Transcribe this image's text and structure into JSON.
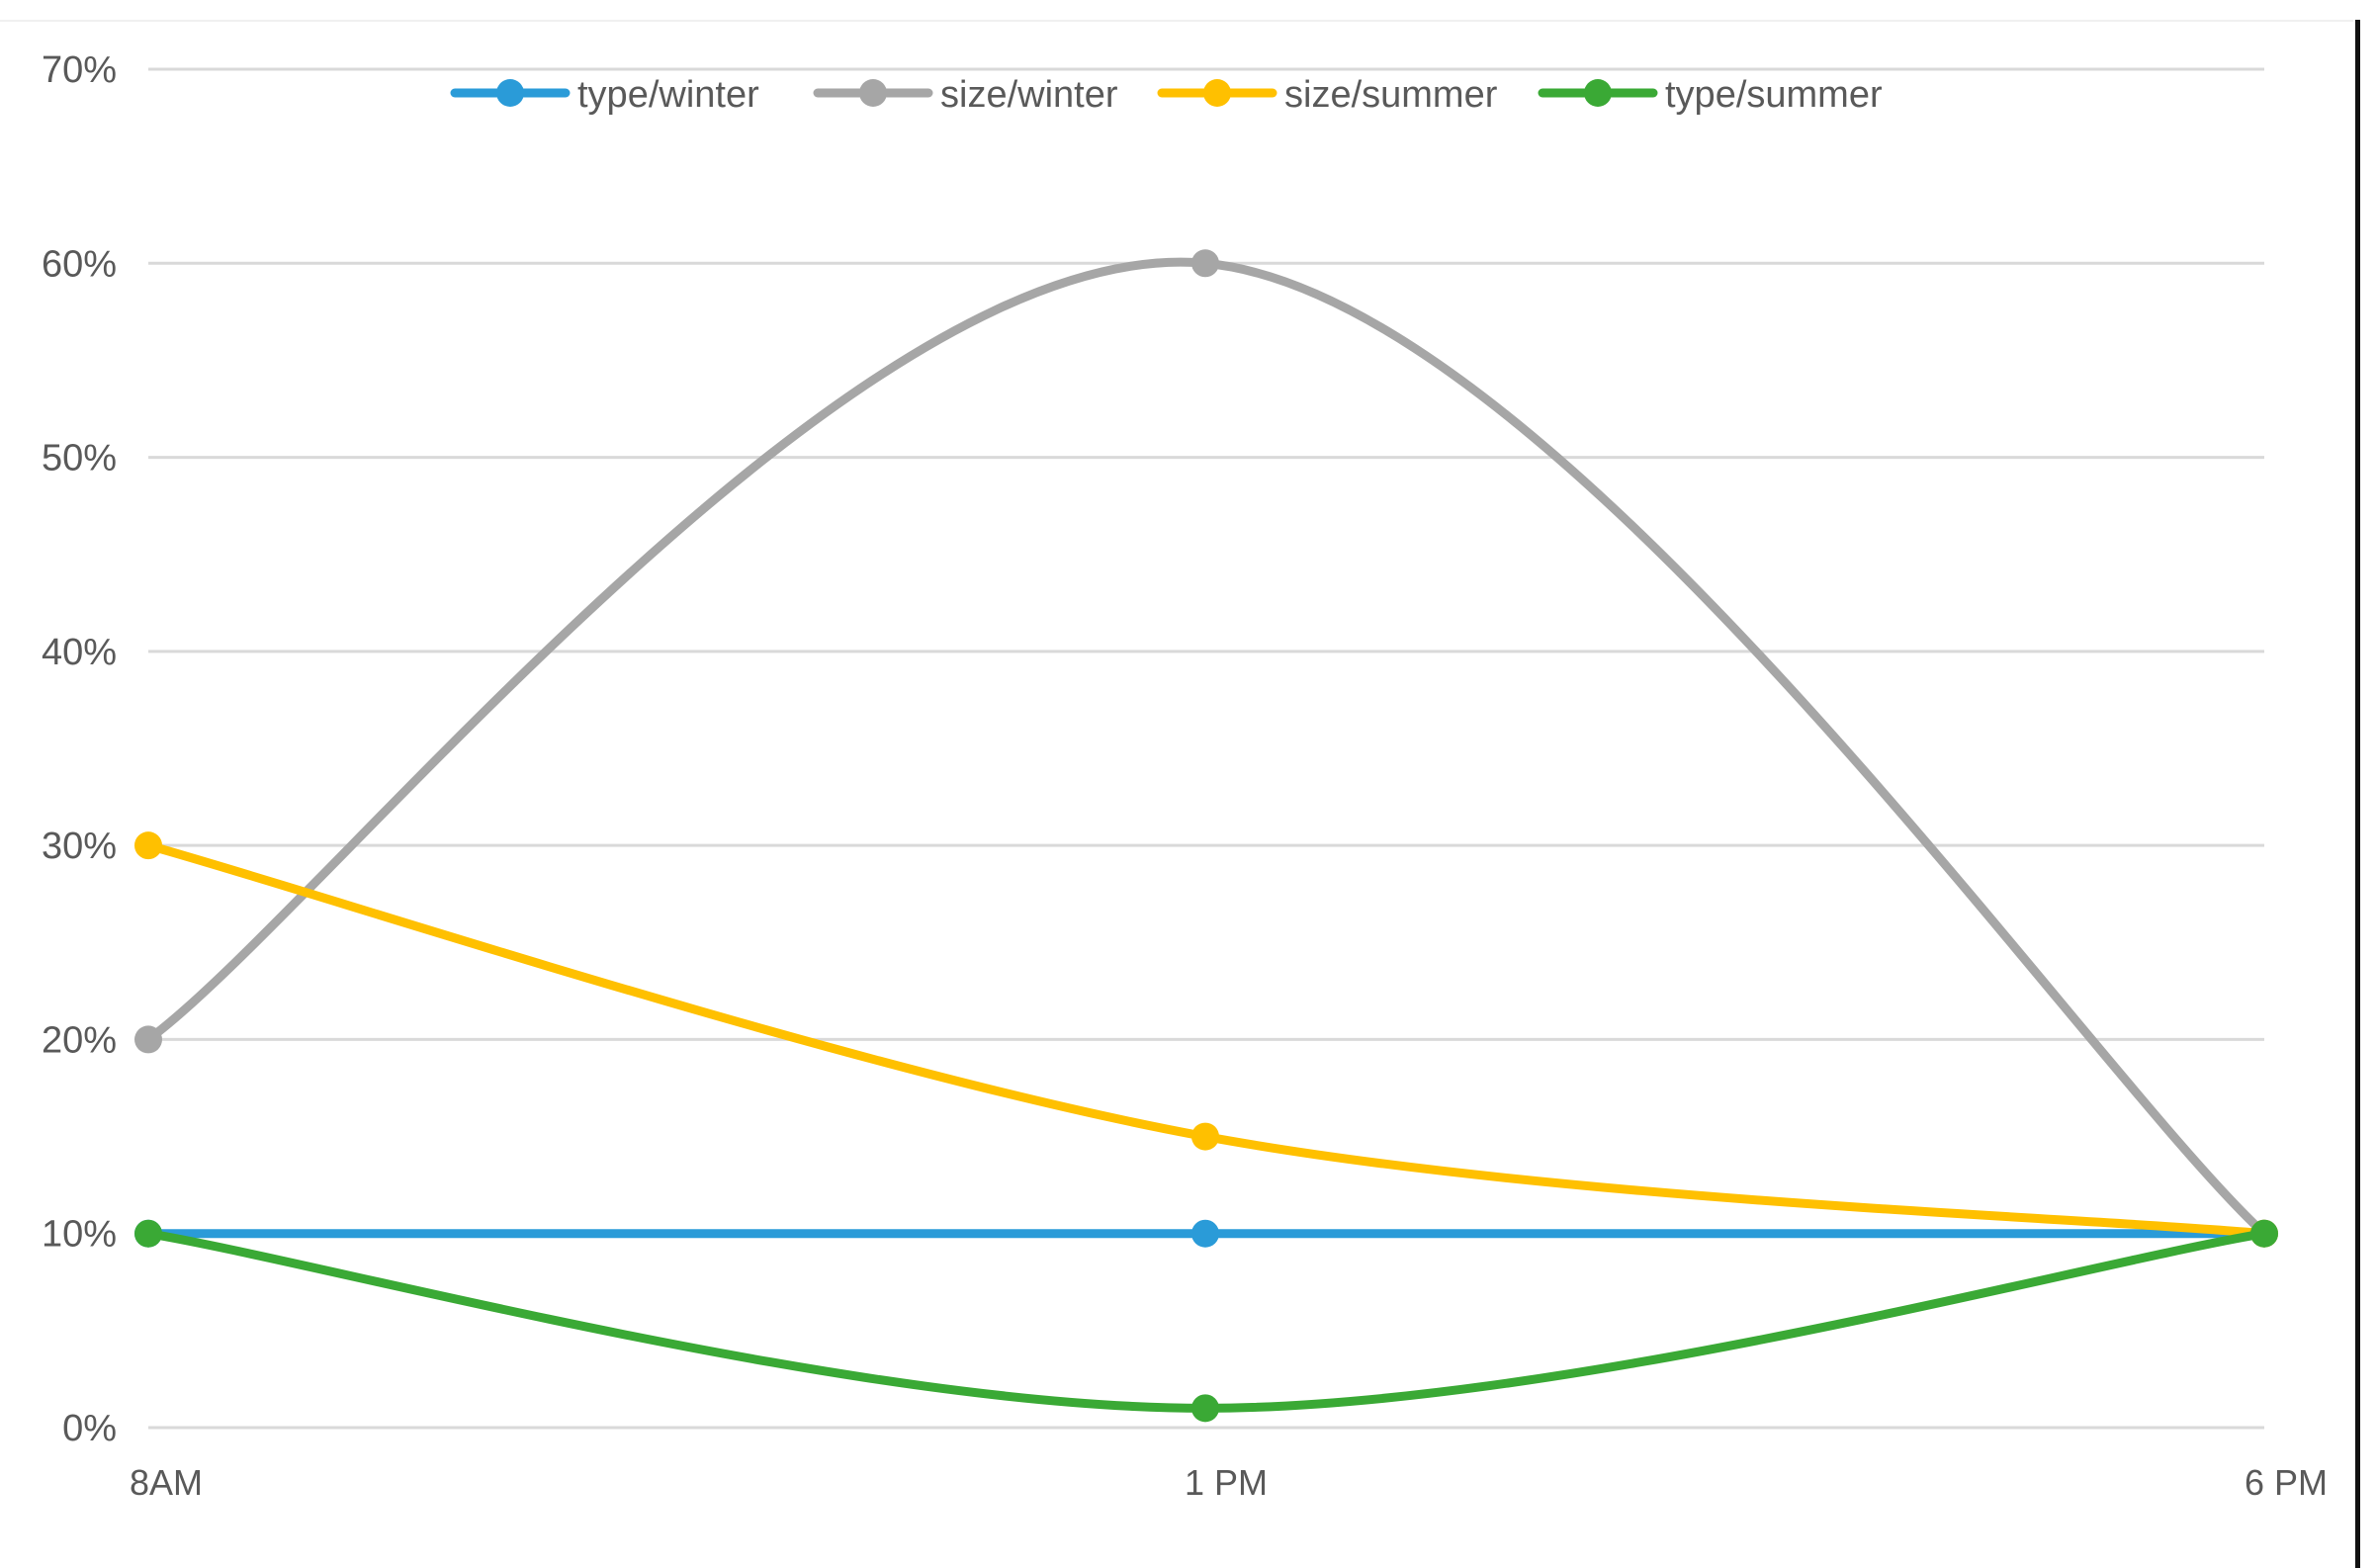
{
  "chart_data": {
    "type": "line",
    "smooth": true,
    "categories": [
      "8AM",
      "1 PM",
      "6 PM"
    ],
    "y_tick_labels": [
      "0%",
      "10%",
      "20%",
      "30%",
      "40%",
      "50%",
      "60%",
      "70%"
    ],
    "ylim": [
      0,
      70
    ],
    "y_unit": "%",
    "grid": true,
    "legend": {
      "position": "top-center",
      "entries": [
        "type/winter",
        "size/winter",
        "size/summer",
        "type/summer"
      ]
    },
    "series": [
      {
        "name": "type/winter",
        "color": "#2a9bd8",
        "values": [
          10,
          10,
          10
        ]
      },
      {
        "name": "size/winter",
        "color": "#a6a6a6",
        "values": [
          20,
          60,
          10
        ]
      },
      {
        "name": "size/summer",
        "color": "#ffc000",
        "values": [
          30,
          15,
          10
        ]
      },
      {
        "name": "type/summer",
        "color": "#3aa935",
        "values": [
          10,
          1,
          10
        ]
      }
    ],
    "gridline_color": "#d9d9d9",
    "label_color": "#595959"
  }
}
